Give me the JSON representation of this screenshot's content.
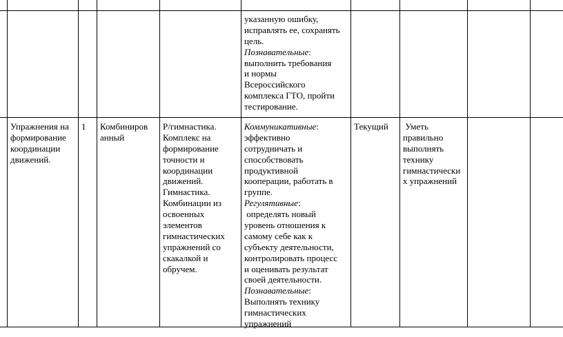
{
  "table": {
    "rows": [
      [
        [],
        [],
        [],
        [],
        [],
        [
          "указанную ошибку,",
          "исправлять ее, сохранять",
          "цель.",
          {
            "label": "Познавательные",
            "rest": ":"
          },
          "выполнить требования",
          "и нормы",
          "Всероссийского",
          "комплекса ГТО, пройти",
          "тестирование."
        ],
        [],
        [],
        [],
        []
      ],
      [
        [],
        [
          "Упражнения на",
          "формирование",
          "координации",
          "движений."
        ],
        [
          "1"
        ],
        [
          "Комбиниров",
          "анный"
        ],
        [
          "Р/гимнастика.",
          "Комплекс на",
          "формирование",
          "точности и",
          "координации",
          "движений.",
          "Гимнастика.",
          "Комбинации из",
          "освоенных",
          "элементов",
          "гимнастических",
          "упражнений со",
          "скакалкой и",
          "обручем."
        ],
        [
          {
            "label": "Коммуникативные",
            "rest": ":"
          },
          "эффективно",
          "сотрудничать и",
          "способствовать",
          "продуктивной",
          "кооперации, работать в",
          "группе.",
          {
            "label": "Регулятивные",
            "rest": ":"
          },
          " определять новый",
          "уровень отношения к",
          "самому себе как к",
          "субъекту деятельности,",
          "контролировать процесс",
          "и оценивать результат",
          "своей деятельности.",
          {
            "label": "Познавательные",
            "rest": ":"
          },
          "Выполнять технику",
          "гимнастических",
          "упражнений"
        ],
        [
          "Текущий"
        ],
        [
          " Уметь",
          "правильно",
          "выполнять",
          "технику",
          "гимнастически",
          "х упражнений"
        ],
        [],
        []
      ]
    ]
  }
}
